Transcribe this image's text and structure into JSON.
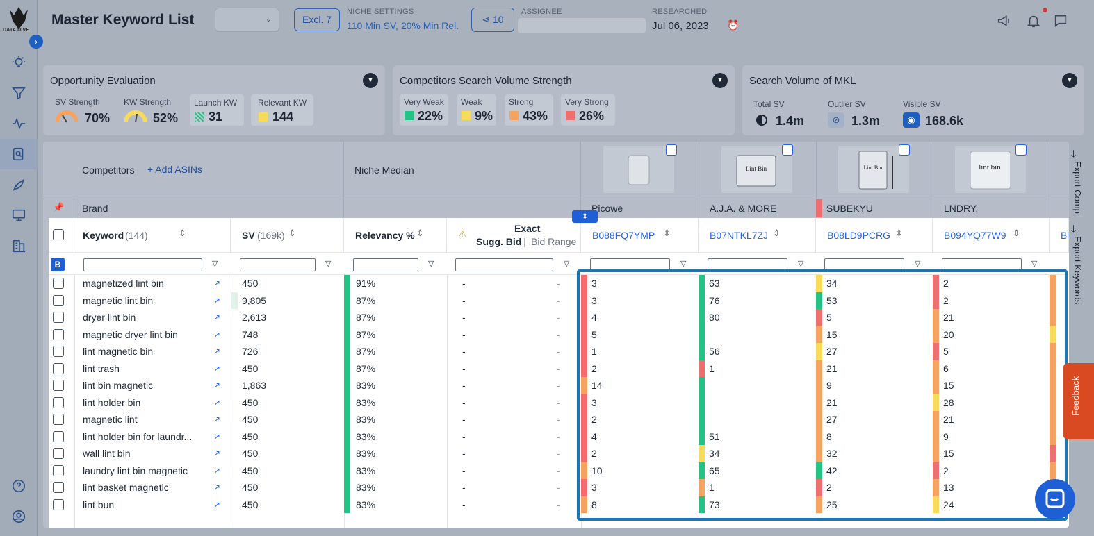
{
  "header": {
    "title": "Master Keyword List",
    "excl_label": "Excl. 7",
    "niche_settings_label": "NICHE SETTINGS",
    "niche_settings_value": "110 Min SV, 20% Min Rel.",
    "share_count": "10",
    "assignee_label": "ASSIGNEE",
    "researched_label": "RESEARCHED",
    "researched_value": "Jul 06, 2023"
  },
  "logo": {
    "text": "DATA DIVE"
  },
  "cards": {
    "opportunity": {
      "title": "Opportunity Evaluation",
      "sv_strength_label": "SV Strength",
      "sv_strength_value": "70%",
      "kw_strength_label": "KW Strength",
      "kw_strength_value": "52%",
      "launch_kw_label": "Launch KW",
      "launch_kw_value": "31",
      "relevant_kw_label": "Relevant KW",
      "relevant_kw_value": "144"
    },
    "competitors_sv": {
      "title": "Competitors Search Volume Strength",
      "very_weak_label": "Very Weak",
      "very_weak_value": "22%",
      "weak_label": "Weak",
      "weak_value": "9%",
      "strong_label": "Strong",
      "strong_value": "43%",
      "very_strong_label": "Very Strong",
      "very_strong_value": "26%"
    },
    "search_volume": {
      "title": "Search Volume of MKL",
      "total_sv_label": "Total SV",
      "total_sv_value": "1.4m",
      "outlier_sv_label": "Outlier SV",
      "outlier_sv_value": "1.3m",
      "visible_sv_label": "Visible SV",
      "visible_sv_value": "168.6k"
    }
  },
  "table": {
    "competitors_label": "Competitors",
    "add_asins_label": "+ Add ASINs",
    "niche_median_label": "Niche Median",
    "brand_label": "Brand",
    "brands": [
      "Picowe",
      "A.J.A. & MORE",
      "SUBEKYU",
      "LNDRY."
    ],
    "product_labels": [
      "Lint Bin",
      "Lint Bin",
      "lint bin"
    ],
    "keyword_header": "Keyword",
    "keyword_count": "(144)",
    "sv_header": "SV",
    "sv_total": "(169k)",
    "relevancy_header": "Relevancy %",
    "exact_header": "Exact",
    "sugg_bid_header": "Sugg. Bid",
    "bid_range_header": "Bid Range",
    "asins": [
      "B088FQ7YMP",
      "B07NTKL7ZJ",
      "B08LD9PCRG",
      "B094YQ77W9",
      "B0"
    ],
    "b_badge": "B",
    "export_comp": "Export Comp",
    "export_keywords": "Export Keywords",
    "rows": [
      {
        "kw": "magnetized lint bin",
        "sv": "450",
        "rel": "91%",
        "bid": "-",
        "range": "-",
        "c1": "3",
        "c2": "63",
        "c3": "34",
        "c4": "2"
      },
      {
        "kw": "magnetic lint bin",
        "sv": "9,805",
        "rel": "87%",
        "bid": "-",
        "range": "-",
        "c1": "3",
        "c2": "76",
        "c3": "53",
        "c4": "2"
      },
      {
        "kw": "dryer lint bin",
        "sv": "2,613",
        "rel": "87%",
        "bid": "-",
        "range": "-",
        "c1": "4",
        "c2": "80",
        "c3": "5",
        "c4": "21"
      },
      {
        "kw": "magnetic dryer lint bin",
        "sv": "748",
        "rel": "87%",
        "bid": "-",
        "range": "-",
        "c1": "5",
        "c2": "",
        "c3": "15",
        "c4": "20"
      },
      {
        "kw": "lint magnetic bin",
        "sv": "726",
        "rel": "87%",
        "bid": "-",
        "range": "-",
        "c1": "1",
        "c2": "56",
        "c3": "27",
        "c4": "5"
      },
      {
        "kw": "lint trash",
        "sv": "450",
        "rel": "87%",
        "bid": "-",
        "range": "-",
        "c1": "2",
        "c2": "1",
        "c3": "21",
        "c4": "6"
      },
      {
        "kw": "lint bin magnetic",
        "sv": "1,863",
        "rel": "83%",
        "bid": "-",
        "range": "-",
        "c1": "14",
        "c2": "",
        "c3": "9",
        "c4": "15"
      },
      {
        "kw": "lint holder bin",
        "sv": "450",
        "rel": "83%",
        "bid": "-",
        "range": "-",
        "c1": "3",
        "c2": "",
        "c3": "21",
        "c4": "28"
      },
      {
        "kw": "magnetic lint",
        "sv": "450",
        "rel": "83%",
        "bid": "-",
        "range": "-",
        "c1": "2",
        "c2": "",
        "c3": "27",
        "c4": "21"
      },
      {
        "kw": "lint holder bin for laundr...",
        "sv": "450",
        "rel": "83%",
        "bid": "-",
        "range": "-",
        "c1": "4",
        "c2": "51",
        "c3": "8",
        "c4": "9"
      },
      {
        "kw": "wall lint bin",
        "sv": "450",
        "rel": "83%",
        "bid": "-",
        "range": "-",
        "c1": "2",
        "c2": "34",
        "c3": "32",
        "c4": "15"
      },
      {
        "kw": "laundry lint bin magnetic",
        "sv": "450",
        "rel": "83%",
        "bid": "-",
        "range": "-",
        "c1": "10",
        "c2": "65",
        "c3": "42",
        "c4": "2"
      },
      {
        "kw": "lint basket magnetic",
        "sv": "450",
        "rel": "83%",
        "bid": "-",
        "range": "-",
        "c1": "3",
        "c2": "1",
        "c3": "2",
        "c4": "13"
      },
      {
        "kw": "lint bun",
        "sv": "450",
        "rel": "83%",
        "bid": "-",
        "range": "-",
        "c1": "8",
        "c2": "73",
        "c3": "25",
        "c4": "24"
      }
    ]
  },
  "feedback_label": "Feedback",
  "colors": {
    "red": "#ee6f6f",
    "orange": "#f4a460",
    "yellow": "#f7dc5c",
    "green": "#22c384",
    "blue": "#2563eb"
  }
}
